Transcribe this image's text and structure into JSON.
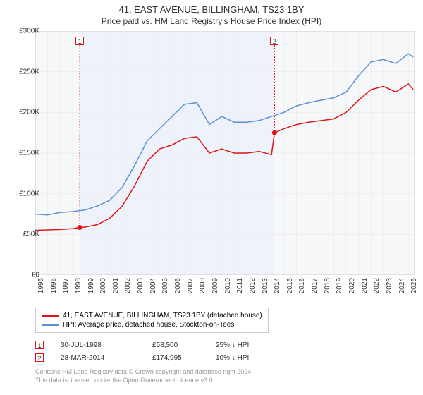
{
  "title": "41, EAST AVENUE, BILLINGHAM, TS23 1BY",
  "subtitle": "Price paid vs. HM Land Registry's House Price Index (HPI)",
  "chart": {
    "type": "line",
    "background_color": "#ffffff",
    "plot_background_color": "#f7f8fa",
    "grid_color": "#eeeeee",
    "axis_color": "#cccccc",
    "text_color": "#333333",
    "xlim": [
      1995,
      2025.5
    ],
    "ylim": [
      0,
      300000
    ],
    "ytick_step": 50000,
    "yticks": [
      "£0",
      "£50K",
      "£100K",
      "£150K",
      "£200K",
      "£250K",
      "£300K"
    ],
    "xticks": [
      "1995",
      "1996",
      "1997",
      "1998",
      "1999",
      "2000",
      "2001",
      "2002",
      "2003",
      "2004",
      "2005",
      "2006",
      "2007",
      "2008",
      "2009",
      "2010",
      "2011",
      "2012",
      "2013",
      "2014",
      "2015",
      "2016",
      "2017",
      "2018",
      "2019",
      "2020",
      "2021",
      "2022",
      "2023",
      "2024",
      "2025"
    ],
    "plot_band": {
      "from": 1998.58,
      "to": 2014.24,
      "color": "#eef3fb"
    },
    "series": [
      {
        "name": "41, EAST AVENUE, BILLINGHAM, TS23 1BY (detached house)",
        "color": "#e01616",
        "line_width": 1.5,
        "data": [
          [
            1995,
            55000
          ],
          [
            1996,
            55500
          ],
          [
            1997,
            56000
          ],
          [
            1998,
            57000
          ],
          [
            1998.58,
            58500
          ],
          [
            1999,
            59000
          ],
          [
            2000,
            62000
          ],
          [
            2001,
            70000
          ],
          [
            2002,
            85000
          ],
          [
            2003,
            110000
          ],
          [
            2004,
            140000
          ],
          [
            2005,
            155000
          ],
          [
            2006,
            160000
          ],
          [
            2007,
            168000
          ],
          [
            2008,
            170000
          ],
          [
            2009,
            150000
          ],
          [
            2010,
            155000
          ],
          [
            2011,
            150000
          ],
          [
            2012,
            150000
          ],
          [
            2013,
            152000
          ],
          [
            2014,
            148000
          ],
          [
            2014.24,
            174995
          ],
          [
            2015,
            180000
          ],
          [
            2016,
            185000
          ],
          [
            2017,
            188000
          ],
          [
            2018,
            190000
          ],
          [
            2019,
            192000
          ],
          [
            2020,
            200000
          ],
          [
            2021,
            215000
          ],
          [
            2022,
            228000
          ],
          [
            2023,
            232000
          ],
          [
            2024,
            225000
          ],
          [
            2025,
            235000
          ],
          [
            2025.4,
            228000
          ]
        ],
        "markers": [
          {
            "x": 1998.58,
            "y": 58500,
            "label": "1"
          },
          {
            "x": 2014.24,
            "y": 174995,
            "label": "2"
          }
        ]
      },
      {
        "name": "HPI: Average price, detached house, Stockton-on-Tees",
        "color": "#5b8fd6",
        "line_width": 1.5,
        "data": [
          [
            1995,
            75000
          ],
          [
            1996,
            74000
          ],
          [
            1997,
            77000
          ],
          [
            1998,
            78000
          ],
          [
            1999,
            80000
          ],
          [
            2000,
            85000
          ],
          [
            2001,
            92000
          ],
          [
            2002,
            108000
          ],
          [
            2003,
            135000
          ],
          [
            2004,
            165000
          ],
          [
            2005,
            180000
          ],
          [
            2006,
            195000
          ],
          [
            2007,
            210000
          ],
          [
            2008,
            212000
          ],
          [
            2009,
            185000
          ],
          [
            2010,
            195000
          ],
          [
            2011,
            188000
          ],
          [
            2012,
            188000
          ],
          [
            2013,
            190000
          ],
          [
            2014,
            195000
          ],
          [
            2015,
            200000
          ],
          [
            2016,
            208000
          ],
          [
            2017,
            212000
          ],
          [
            2018,
            215000
          ],
          [
            2019,
            218000
          ],
          [
            2020,
            225000
          ],
          [
            2021,
            245000
          ],
          [
            2022,
            262000
          ],
          [
            2023,
            265000
          ],
          [
            2024,
            260000
          ],
          [
            2025,
            272000
          ],
          [
            2025.4,
            268000
          ]
        ]
      }
    ]
  },
  "legend": {
    "items": [
      {
        "color": "#e01616",
        "label": "41, EAST AVENUE, BILLINGHAM, TS23 1BY (detached house)"
      },
      {
        "color": "#5b8fd6",
        "label": "HPI: Average price, detached house, Stockton-on-Tees"
      }
    ]
  },
  "sales": [
    {
      "marker": "1",
      "date": "30-JUL-1998",
      "price": "£58,500",
      "pct": "25% ↓ HPI"
    },
    {
      "marker": "2",
      "date": "28-MAR-2014",
      "price": "£174,995",
      "pct": "10% ↓ HPI"
    }
  ],
  "footer": {
    "line1": "Contains HM Land Registry data © Crown copyright and database right 2024.",
    "line2": "This data is licensed under the Open Government Licence v3.0."
  }
}
